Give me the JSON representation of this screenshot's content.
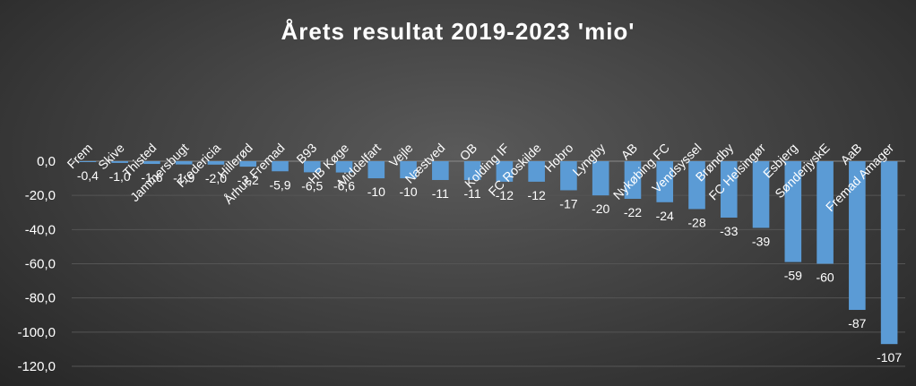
{
  "chart_data": {
    "type": "bar",
    "title": "Årets resultat 2019-2023 'mio'",
    "xlabel": "",
    "ylabel": "",
    "ylim": [
      -120,
      0
    ],
    "y_ticks": [
      "0,0",
      "-20,0",
      "-40,0",
      "-60,0",
      "-80,0",
      "-100,0",
      "-120,0"
    ],
    "grid": true,
    "bar_color": "#5b9bd5",
    "categories": [
      "Frem",
      "Skive",
      "Thisted",
      "Jammersbugt",
      "Fredericia",
      "Hillerød",
      "Århus Fremad",
      "B93",
      "HB Køge",
      "Middelfart",
      "Vejle",
      "Næstved",
      "OB",
      "Kolding IF",
      "FC Roskilde",
      "Hobro",
      "Lyngby",
      "AB",
      "Nykøbing FC",
      "Vendsyssel",
      "Brøndby",
      "FC Helsingør",
      "Esbjerg",
      "SønderjyskE",
      "AaB",
      "Fremad Amager"
    ],
    "values": [
      -0.4,
      -1.0,
      -1.6,
      -1.9,
      -2.0,
      -3.2,
      -5.9,
      -6.5,
      -6.6,
      -10,
      -10,
      -11,
      -11,
      -12,
      -12,
      -17,
      -20,
      -22,
      -24,
      -28,
      -33,
      -39,
      -59,
      -60,
      -87,
      -107
    ],
    "data_labels": [
      "-0,4",
      "-1,0",
      "-1,6",
      "-1,9",
      "-2,0",
      "-3,2",
      "-5,9",
      "-6,5",
      "-6,6",
      "-10",
      "-10",
      "-11",
      "-11",
      "-12",
      "-12",
      "-17",
      "-20",
      "-22",
      "-24",
      "-28",
      "-33",
      "-39",
      "-59",
      "-60",
      "-87",
      "-107"
    ]
  }
}
